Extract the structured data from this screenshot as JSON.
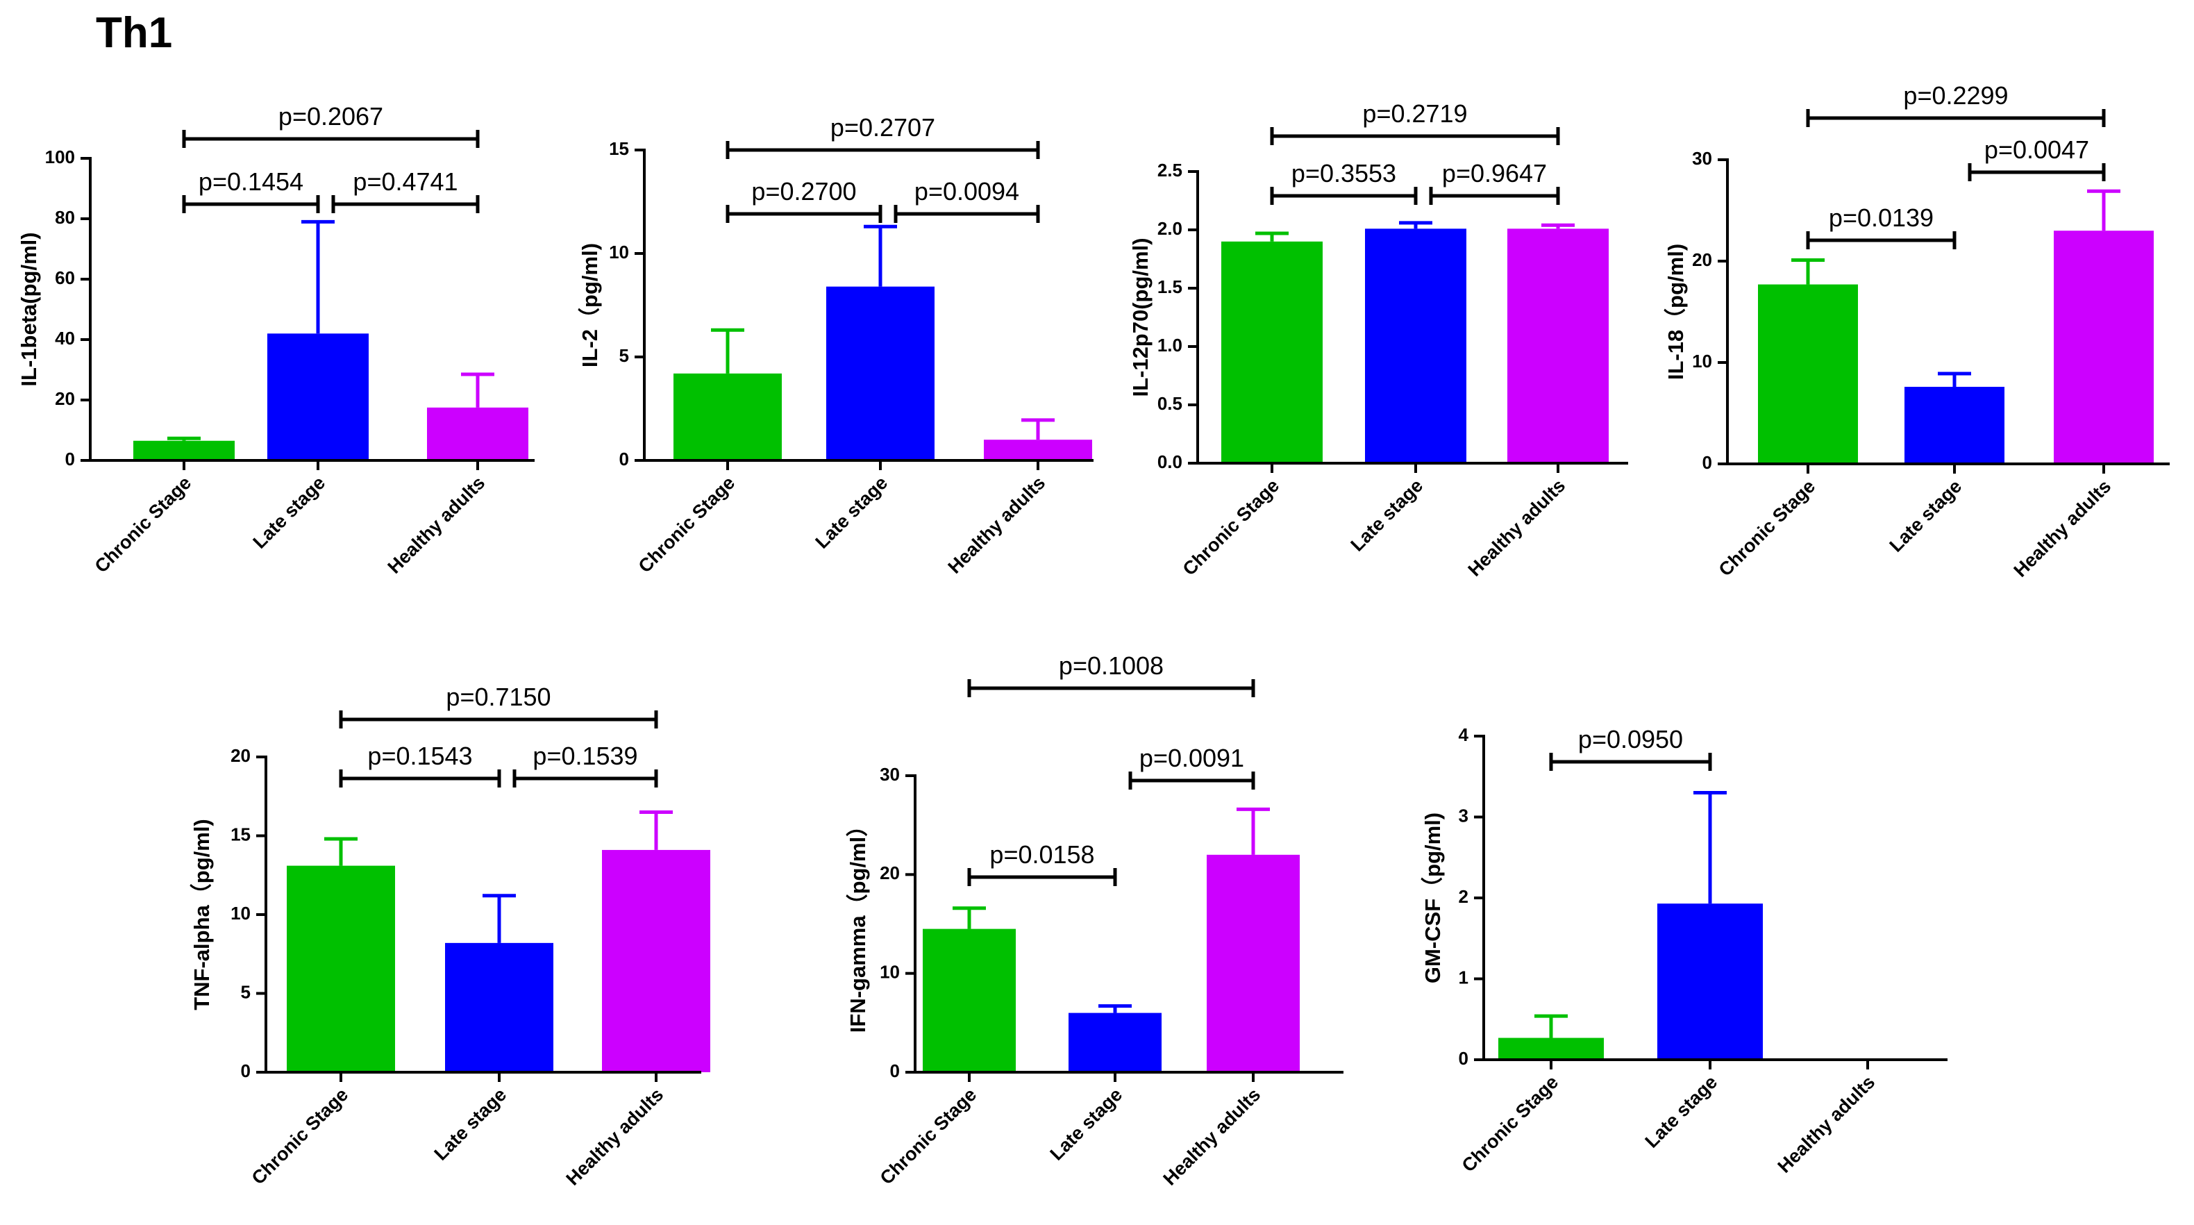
{
  "figure_title": "Th1",
  "colors": {
    "chronic": "#00c000",
    "late": "#0000ff",
    "healthy": "#cc00ff",
    "axis": "#000000"
  },
  "chart_data": [
    {
      "type": "bar",
      "title": "",
      "xlabel": "",
      "ylabel": "IL-1beta(pg/ml)",
      "categories": [
        "Chronic Stage",
        "Late stage",
        "Healthy adults"
      ],
      "values": [
        6.5,
        42,
        17.5
      ],
      "errors": [
        0.8,
        37,
        11
      ],
      "ylim": [
        0,
        100
      ],
      "yticks": [
        0,
        20,
        40,
        60,
        80,
        100
      ],
      "yticklabels": [
        "0",
        "20",
        "40",
        "60",
        "80",
        "100"
      ],
      "comparisons": [
        {
          "from": 0,
          "to": 2,
          "label": "p=0.2067"
        },
        {
          "from": 0,
          "to": 1,
          "label": "p=0.1454"
        },
        {
          "from": 1,
          "to": 2,
          "label": "p=0.4741"
        }
      ]
    },
    {
      "type": "bar",
      "title": "",
      "xlabel": "",
      "ylabel": "IL-2（pg/ml)",
      "categories": [
        "Chronic Stage",
        "Late stage",
        "Healthy adults"
      ],
      "values": [
        4.2,
        8.4,
        1.0
      ],
      "errors": [
        2.1,
        2.9,
        0.95
      ],
      "ylim": [
        0,
        15
      ],
      "yticks": [
        0,
        5,
        10,
        15
      ],
      "yticklabels": [
        "0",
        "5",
        "10",
        "15"
      ],
      "comparisons": [
        {
          "from": 0,
          "to": 2,
          "label": "p=0.2707"
        },
        {
          "from": 0,
          "to": 1,
          "label": "p=0.2700"
        },
        {
          "from": 1,
          "to": 2,
          "label": "p=0.0094"
        }
      ]
    },
    {
      "type": "bar",
      "title": "",
      "xlabel": "",
      "ylabel": "IL-12p70(pg/ml)",
      "categories": [
        "Chronic Stage",
        "Late stage",
        "Healthy adults"
      ],
      "values": [
        1.9,
        2.01,
        2.01
      ],
      "errors": [
        0.07,
        0.05,
        0.03
      ],
      "ylim": [
        0,
        2.5
      ],
      "yticks": [
        0,
        0.5,
        1,
        1.5,
        2,
        2.5
      ],
      "yticklabels": [
        "0.0",
        "0.5",
        "1.0",
        "1.5",
        "2.0",
        "2.5"
      ],
      "comparisons": [
        {
          "from": 0,
          "to": 2,
          "label": "p=0.2719"
        },
        {
          "from": 0,
          "to": 1,
          "label": "p=0.3553"
        },
        {
          "from": 1,
          "to": 2,
          "label": "p=0.9647"
        }
      ]
    },
    {
      "type": "bar",
      "title": "",
      "xlabel": "",
      "ylabel": "IL-18（pg/ml)",
      "categories": [
        "Chronic Stage",
        "Late stage",
        "Healthy adults"
      ],
      "values": [
        17.7,
        7.6,
        23.0
      ],
      "errors": [
        2.4,
        1.3,
        3.9
      ],
      "ylim": [
        0,
        30
      ],
      "yticks": [
        0,
        10,
        20,
        30
      ],
      "yticklabels": [
        "0",
        "10",
        "20",
        "30"
      ],
      "comparisons": [
        {
          "from": 0,
          "to": 2,
          "label": "p=0.2299"
        },
        {
          "from": 1,
          "to": 2,
          "label": "p=0.0047"
        },
        {
          "from": 0,
          "to": 1,
          "label": "p=0.0139"
        }
      ]
    },
    {
      "type": "bar",
      "title": "",
      "xlabel": "",
      "ylabel": "TNF-alpha（pg/ml)",
      "categories": [
        "Chronic Stage",
        "Late stage",
        "Healthy adults"
      ],
      "values": [
        13.1,
        8.2,
        14.1
      ],
      "errors": [
        1.7,
        3.0,
        2.4
      ],
      "ylim": [
        0,
        20
      ],
      "yticks": [
        0,
        5,
        10,
        15,
        20
      ],
      "yticklabels": [
        "0",
        "5",
        "10",
        "15",
        "20"
      ],
      "comparisons": [
        {
          "from": 0,
          "to": 2,
          "label": "p=0.7150"
        },
        {
          "from": 0,
          "to": 1,
          "label": "p=0.1543"
        },
        {
          "from": 1,
          "to": 2,
          "label": "p=0.1539"
        }
      ]
    },
    {
      "type": "bar",
      "title": "",
      "xlabel": "",
      "ylabel": "IFN-gamma（pg/ml）",
      "categories": [
        "Chronic Stage",
        "Late stage",
        "Healthy adults"
      ],
      "values": [
        14.5,
        6.0,
        22.0
      ],
      "errors": [
        2.1,
        0.7,
        4.6
      ],
      "ylim": [
        0,
        30
      ],
      "yticks": [
        0,
        10,
        20,
        30
      ],
      "yticklabels": [
        "0",
        "10",
        "20",
        "30"
      ],
      "comparisons": [
        {
          "from": 0,
          "to": 2,
          "label": "p=0.1008"
        },
        {
          "from": 1,
          "to": 2,
          "label": "p=0.0091"
        },
        {
          "from": 0,
          "to": 1,
          "label": "p=0.0158"
        }
      ]
    },
    {
      "type": "bar",
      "title": "",
      "xlabel": "",
      "ylabel": "GM-CSF（pg/ml)",
      "categories": [
        "Chronic Stage",
        "Late stage",
        "Healthy adults"
      ],
      "values": [
        0.27,
        1.93,
        0
      ],
      "errors": [
        0.27,
        1.37,
        0
      ],
      "ylim": [
        0,
        4
      ],
      "yticks": [
        0,
        1,
        2,
        3,
        4
      ],
      "yticklabels": [
        "0",
        "1",
        "2",
        "3",
        "4"
      ],
      "comparisons": [
        {
          "from": 0,
          "to": 1,
          "label": "p=0.0950"
        }
      ]
    }
  ]
}
